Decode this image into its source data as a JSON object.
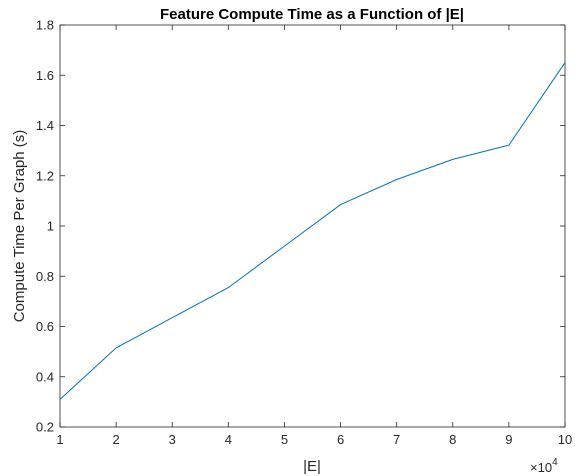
{
  "chart_data": {
    "type": "line",
    "title": "Feature Compute Time as a Function of |E|",
    "xlabel": "|E|",
    "ylabel": "Compute Time Per Graph (s)",
    "x_exponent_label": {
      "base": "×10",
      "exponent": "4"
    },
    "x_scale_factor": 10000,
    "xlim": [
      1,
      10
    ],
    "ylim": [
      0.2,
      1.8
    ],
    "x_ticks": [
      1,
      2,
      3,
      4,
      5,
      6,
      7,
      8,
      9,
      10
    ],
    "y_ticks": [
      0.2,
      0.4,
      0.6,
      0.8,
      1,
      1.2,
      1.4,
      1.6,
      1.8
    ],
    "y_tick_labels": [
      "0.2",
      "0.4",
      "0.6",
      "0.8",
      "1",
      "1.2",
      "1.4",
      "1.6",
      "1.8"
    ],
    "grid": false,
    "series": [
      {
        "color": "#0072BD",
        "x": [
          1,
          2,
          3,
          4,
          5,
          6,
          7,
          8,
          9,
          10
        ],
        "y": [
          0.31,
          0.515,
          0.635,
          0.755,
          0.92,
          1.085,
          1.185,
          1.265,
          1.322,
          1.65
        ]
      }
    ]
  }
}
